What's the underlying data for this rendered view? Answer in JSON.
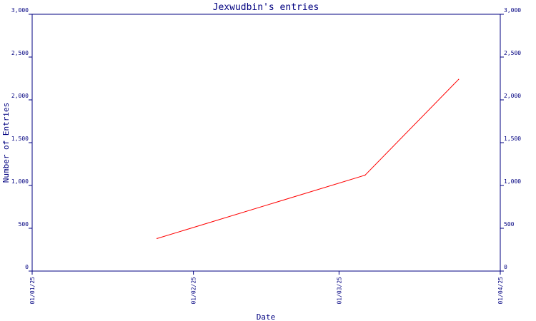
{
  "chart_data": {
    "type": "line",
    "title": "Jexwudbin's entries",
    "xlabel": "Date",
    "ylabel": "Number of Entries",
    "ylim": [
      0,
      3000
    ],
    "y_ticks": [
      0,
      500,
      1000,
      1500,
      2000,
      2500,
      3000
    ],
    "y_tick_labels": [
      "0",
      "500",
      "1,000",
      "1,500",
      "2,000",
      "2,500",
      "3,000"
    ],
    "x_ticks": [
      "2025-01-01",
      "2025-02-01",
      "2025-03-01",
      "2025-04-01"
    ],
    "x_tick_labels": [
      "01/01/25",
      "01/02/25",
      "01/03/25",
      "01/04/25"
    ],
    "xlim": [
      "2025-01-01",
      "2025-04-01"
    ],
    "series": [
      {
        "x": [
          "2025-01-25",
          "2025-03-06",
          "2025-03-24"
        ],
        "y": [
          380,
          1120,
          2240
        ]
      }
    ],
    "grid": false,
    "colors": {
      "axis": "#000080",
      "line": "#ff0000",
      "background": "#ffffff"
    }
  }
}
